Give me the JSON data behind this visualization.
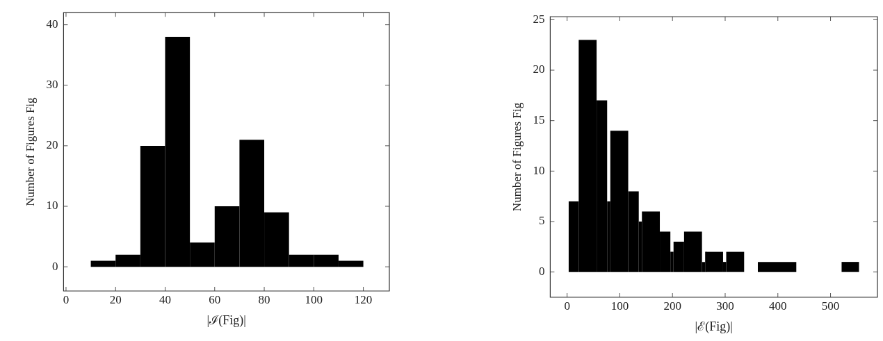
{
  "chart_data": [
    {
      "type": "histogram",
      "xlabel": "|ℐ(Fig)|",
      "ylabel": "Number of Figures Fig",
      "color": "#000000",
      "bins": [
        10,
        20,
        30,
        40,
        50,
        60,
        70,
        80,
        90,
        100,
        110,
        120
      ],
      "values": [
        1,
        2,
        20,
        38,
        4,
        10,
        21,
        9,
        2,
        2,
        1
      ],
      "xlim": [
        -1,
        130.5
      ],
      "xticks": [
        0,
        20,
        40,
        60,
        80,
        100,
        120
      ],
      "ylim": [
        -4,
        42
      ],
      "yticks": [
        0,
        10,
        20,
        30,
        40
      ],
      "grid": false
    },
    {
      "type": "histogram",
      "xlabel": "|ℰ(Fig)|",
      "ylabel": "Number of Figures Fig",
      "color": "#000000",
      "bins": [
        3,
        22,
        56,
        76,
        82,
        116,
        136,
        142,
        176,
        196,
        202,
        222,
        256,
        262,
        296,
        302,
        336,
        362,
        435,
        521,
        554
      ],
      "values": [
        7,
        23,
        17,
        7,
        14,
        8,
        5,
        6,
        4,
        2,
        3,
        4,
        1,
        2,
        1,
        2,
        0,
        1,
        0,
        1
      ],
      "xlim": [
        -32,
        589
      ],
      "xticks": [
        0,
        100,
        200,
        300,
        400,
        500
      ],
      "ylim": [
        -2.5,
        25.3
      ],
      "yticks": [
        0,
        5,
        10,
        15,
        20,
        25
      ],
      "grid": false
    }
  ]
}
